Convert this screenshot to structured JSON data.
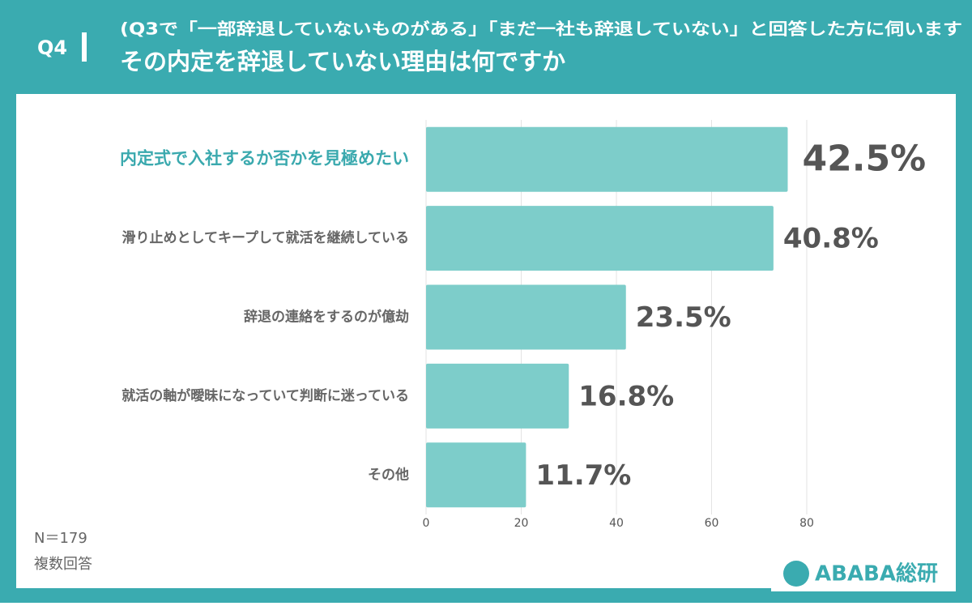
{
  "header": {
    "question": "Q4",
    "subtitle": "(Q3で「一部辞退していないものがある」「まだ一社も辞退していない」と回答した方に伺います",
    "title": "その内定を辞退していない理由は何ですか"
  },
  "chart_data": {
    "type": "bar",
    "orientation": "horizontal",
    "categories": [
      "内定式で入社するか否かを見極めたい",
      "滑り止めとしてキープして就活を継続している",
      "辞退の連絡をするのが億劫",
      "就活の軸が曖昧になっていて判断に迷っている",
      "その他"
    ],
    "values": [
      76,
      73,
      42,
      30,
      21
    ],
    "value_labels": [
      "42.5%",
      "40.8%",
      "23.5%",
      "16.8%",
      "11.7%"
    ],
    "color": "#7dcdca",
    "highlight_color": "#3aa9ae",
    "xlim": [
      0,
      80
    ],
    "xticks": [
      0,
      20,
      40,
      60,
      80
    ],
    "grid": true,
    "notes": [
      "N＝179",
      "複数回答"
    ]
  },
  "logo": "ABABA総研"
}
